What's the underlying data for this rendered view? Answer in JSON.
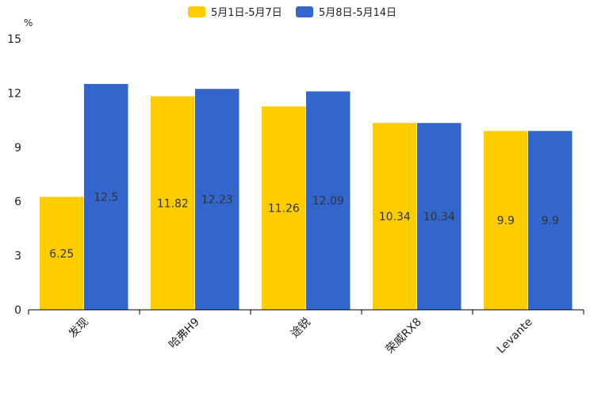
{
  "chart_data": {
    "type": "bar",
    "title": "",
    "xlabel": "",
    "ylabel": "%",
    "ylim": [
      0,
      15
    ],
    "yticks": [
      0,
      3,
      6,
      9,
      12,
      15
    ],
    "grid": false,
    "legend_position": "top-center",
    "categories": [
      "发现",
      "哈弗H9",
      "途锐",
      "荣威RX8",
      "Levante"
    ],
    "series": [
      {
        "name": "5月1日-5月7日",
        "color": "#FFCC00",
        "values": [
          6.25,
          11.82,
          11.26,
          10.34,
          9.9
        ]
      },
      {
        "name": "5月8日-5月14日",
        "color": "#3366CC",
        "values": [
          12.5,
          12.23,
          12.09,
          10.34,
          9.9
        ]
      }
    ]
  }
}
